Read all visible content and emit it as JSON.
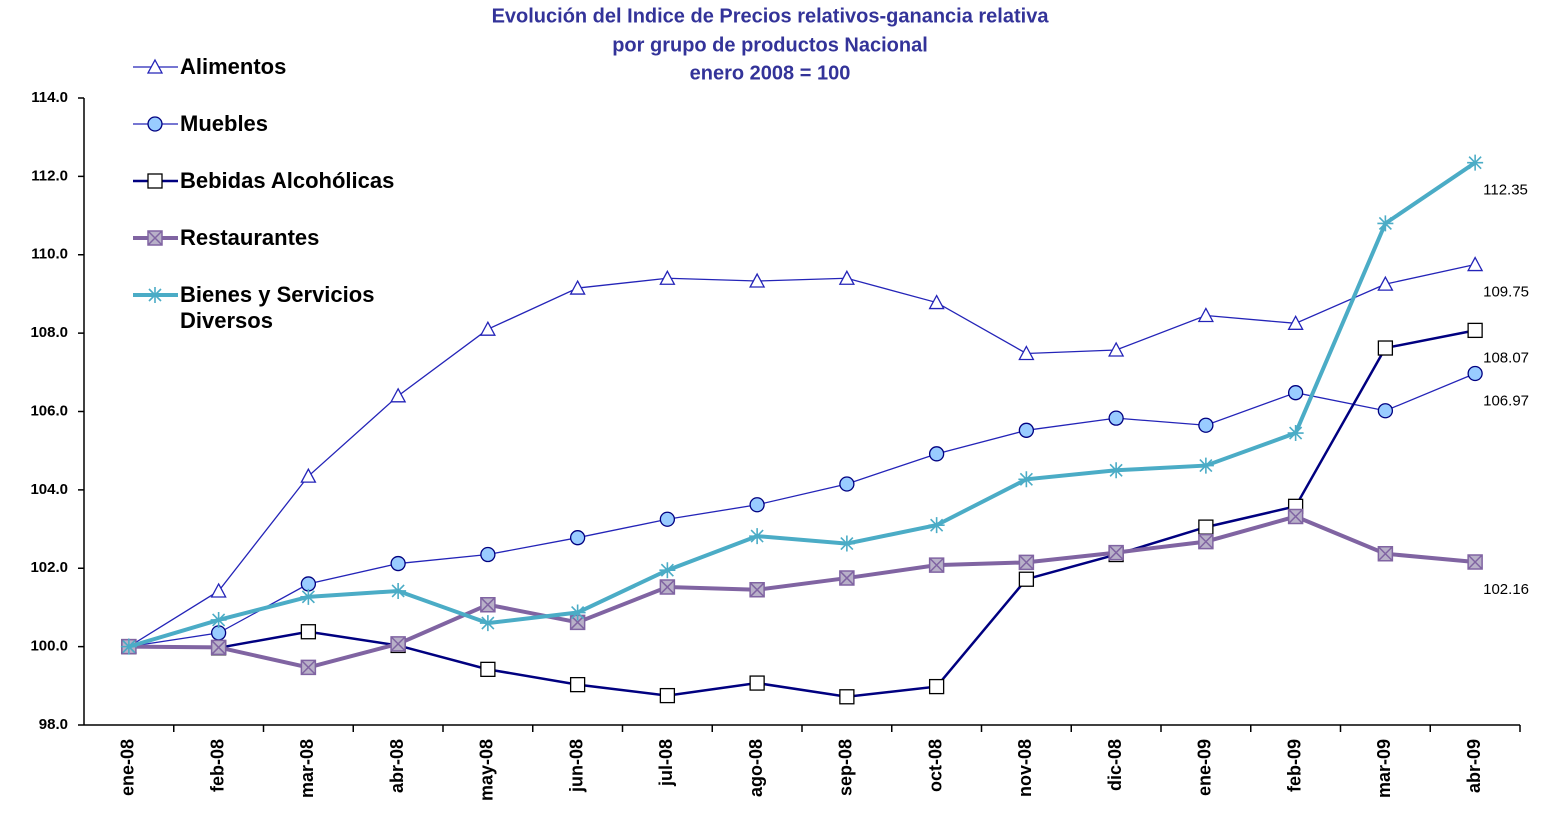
{
  "chart_data": {
    "type": "line",
    "title": "Evolución del Indice de Precios relativos-ganancia relativa",
    "subtitle": "por grupo de productos Nacional",
    "note": "enero 2008 = 100",
    "categories": [
      "ene-08",
      "feb-08",
      "mar-08",
      "abr-08",
      "may-08",
      "jun-08",
      "jul-08",
      "ago-08",
      "sep-08",
      "oct-08",
      "nov-08",
      "dic-08",
      "ene-09",
      "feb-09",
      "mar-09",
      "abr-09"
    ],
    "ylim": [
      98,
      114
    ],
    "yticks": [
      {
        "value": 98,
        "label": "98.0"
      },
      {
        "value": 100,
        "label": "100.0"
      },
      {
        "value": 102,
        "label": "102.0"
      },
      {
        "value": 104,
        "label": "104.0"
      },
      {
        "value": 106,
        "label": "106.0"
      },
      {
        "value": 108,
        "label": "108.0"
      },
      {
        "value": 110,
        "label": "110.0"
      },
      {
        "value": 112,
        "label": "112.0"
      },
      {
        "value": 114,
        "label": "114.0"
      }
    ],
    "grid": false,
    "legend": "top-left",
    "series": [
      {
        "name": "Alimentos",
        "color": "#2424b8",
        "marker": "triangle",
        "values": [
          100,
          101.42,
          104.35,
          106.4,
          108.1,
          109.15,
          109.4,
          109.33,
          109.4,
          108.78,
          107.48,
          107.57,
          108.45,
          108.25,
          109.25,
          109.75
        ],
        "value_labels": [
          null,
          null,
          null,
          null,
          null,
          null,
          null,
          null,
          null,
          null,
          null,
          null,
          null,
          null,
          null,
          "109.75"
        ]
      },
      {
        "name": "Muebles",
        "color": "#2424b8",
        "marker": "circle",
        "values": [
          100,
          100.35,
          101.6,
          102.12,
          102.35,
          102.78,
          103.25,
          103.62,
          104.15,
          104.92,
          105.52,
          105.83,
          105.65,
          106.48,
          106.02,
          106.97
        ],
        "value_labels": [
          null,
          null,
          null,
          null,
          null,
          null,
          null,
          null,
          null,
          null,
          null,
          null,
          null,
          null,
          null,
          "106.97"
        ]
      },
      {
        "name": "Bebidas Alcohólicas",
        "color": "#000080",
        "marker": "square",
        "values": [
          100,
          99.97,
          100.38,
          100.03,
          99.42,
          99.03,
          98.75,
          99.07,
          98.72,
          98.98,
          101.72,
          102.35,
          103.05,
          103.58,
          107.62,
          108.07
        ],
        "value_labels": [
          null,
          null,
          null,
          null,
          null,
          null,
          null,
          null,
          null,
          null,
          null,
          null,
          null,
          null,
          null,
          "108.07"
        ]
      },
      {
        "name": "Restaurantes",
        "color": "#8064a2",
        "marker": "xsquare",
        "values": [
          100,
          99.98,
          99.47,
          100.07,
          101.07,
          100.62,
          101.52,
          101.45,
          101.75,
          102.08,
          102.15,
          102.4,
          102.68,
          103.32,
          102.37,
          102.16
        ],
        "value_labels": [
          null,
          null,
          null,
          null,
          null,
          null,
          null,
          null,
          null,
          null,
          null,
          null,
          null,
          null,
          null,
          "102.16"
        ]
      },
      {
        "name": "Bienes y Servicios Diversos",
        "color": "#4bacc6",
        "marker": "star",
        "values": [
          100,
          100.68,
          101.27,
          101.42,
          100.6,
          100.87,
          101.95,
          102.82,
          102.63,
          103.1,
          104.27,
          104.5,
          104.62,
          105.45,
          110.8,
          112.35
        ],
        "value_labels": [
          null,
          null,
          null,
          null,
          null,
          null,
          null,
          null,
          null,
          null,
          null,
          null,
          null,
          null,
          null,
          "112.35"
        ]
      }
    ]
  }
}
